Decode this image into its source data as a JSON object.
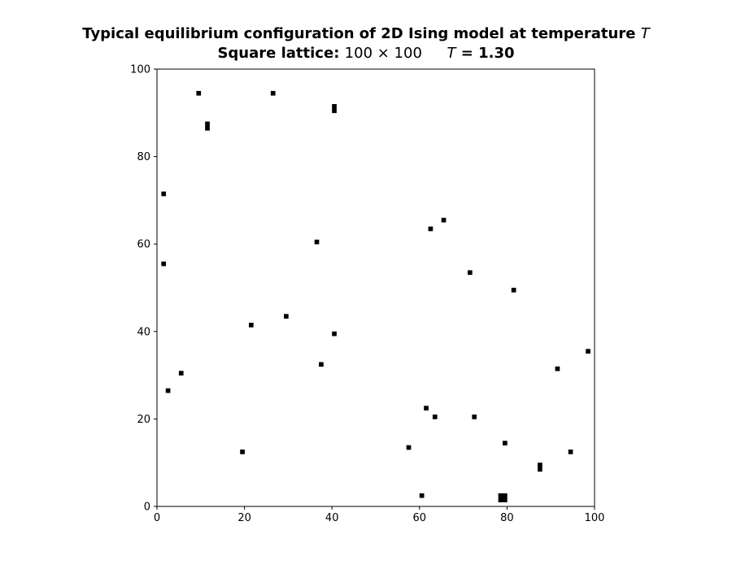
{
  "chart_data": {
    "type": "heatmap",
    "title": {
      "line1_text": "Typical equilibrium configuration of 2D Ising model at temperature",
      "line1_symbol": "T",
      "line2_prefix": "Square lattice:",
      "line2_size": "100 × 100",
      "line2_symbol": "T",
      "line2_value": "= 1.30"
    },
    "lattice_size": [
      100,
      100
    ],
    "xlim": [
      0,
      100
    ],
    "ylim": [
      0,
      100
    ],
    "x_ticks": [
      "0",
      "20",
      "40",
      "60",
      "80",
      "100"
    ],
    "y_ticks": [
      "0",
      "20",
      "40",
      "60",
      "80",
      "100"
    ],
    "colormap": {
      "spin_up": "#ffffff",
      "spin_down": "#000000"
    },
    "spin_down_sites": [
      [
        9,
        94
      ],
      [
        26,
        94
      ],
      [
        40,
        90
      ],
      [
        40,
        91
      ],
      [
        11,
        86
      ],
      [
        11,
        87
      ],
      [
        1,
        71
      ],
      [
        65,
        65
      ],
      [
        62,
        63
      ],
      [
        36,
        60
      ],
      [
        1,
        55
      ],
      [
        71,
        53
      ],
      [
        81,
        49
      ],
      [
        29,
        43
      ],
      [
        21,
        41
      ],
      [
        40,
        39
      ],
      [
        98,
        35
      ],
      [
        37,
        32
      ],
      [
        91,
        31
      ],
      [
        5,
        30
      ],
      [
        2,
        26
      ],
      [
        61,
        22
      ],
      [
        63,
        20
      ],
      [
        72,
        20
      ],
      [
        79,
        14
      ],
      [
        57,
        13
      ],
      [
        19,
        12
      ],
      [
        94,
        12
      ],
      [
        87,
        8
      ],
      [
        87,
        9
      ],
      [
        60,
        2
      ],
      [
        78,
        1
      ],
      [
        79,
        1
      ],
      [
        78,
        2
      ],
      [
        79,
        2
      ]
    ]
  }
}
